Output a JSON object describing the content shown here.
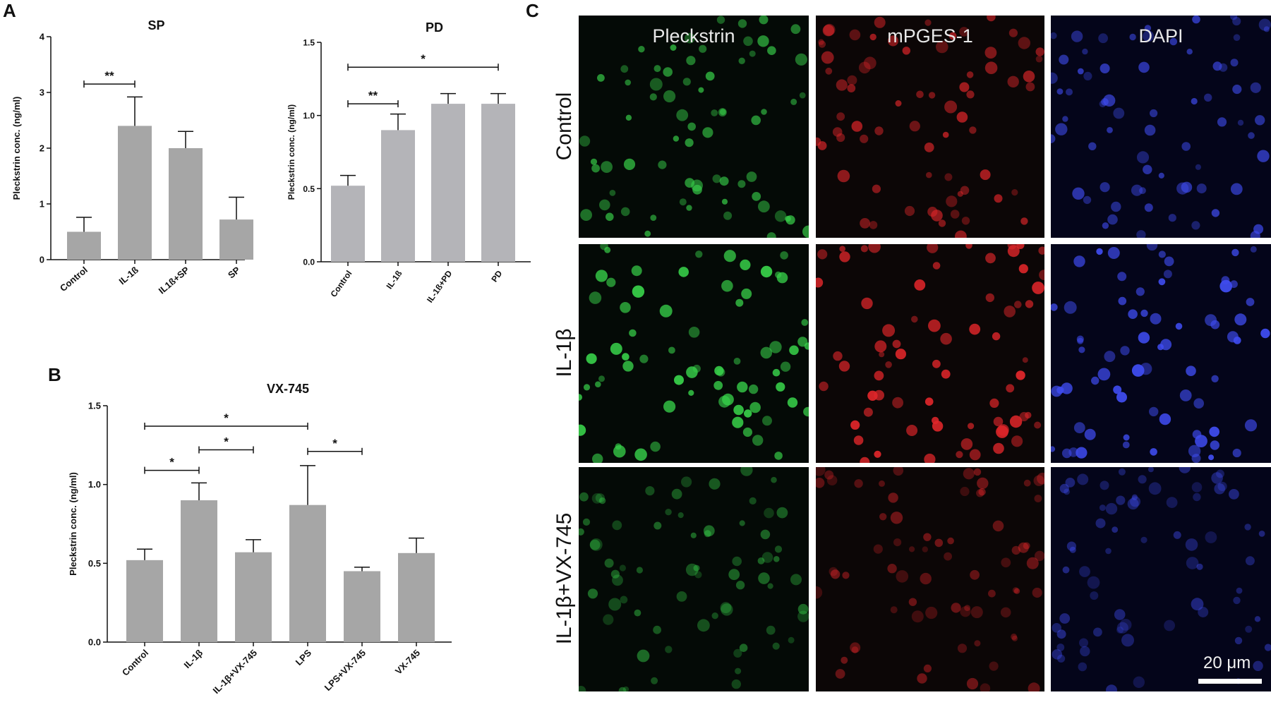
{
  "panels": {
    "a": "A",
    "b": "B",
    "c": "C"
  },
  "chart_data": [
    {
      "id": "sp",
      "type": "bar",
      "title": "SP",
      "ylabel": "Pleckstrin conc. (ng/ml)",
      "xlabel": "",
      "categories": [
        "Control",
        "IL-1ß",
        "IL1ß+SP",
        "SP"
      ],
      "values": [
        0.5,
        2.4,
        2.0,
        0.72
      ],
      "errors": [
        0.26,
        0.52,
        0.3,
        0.4
      ],
      "ylim": [
        0,
        4
      ],
      "yticks": [
        "0",
        "1",
        "2",
        "3",
        "4"
      ],
      "bar_color": "#a6a6a6",
      "significance": [
        {
          "from": 0,
          "to": 1,
          "label": "**",
          "level": 3.15
        }
      ]
    },
    {
      "id": "pd",
      "type": "bar",
      "title": "PD",
      "ylabel": "Pleckstrin conc. (ng/ml)",
      "xlabel": "",
      "categories": [
        "Control",
        "IL-1ß",
        "IL-1ß+PD",
        "PD"
      ],
      "values": [
        0.52,
        0.9,
        1.08,
        1.08
      ],
      "errors": [
        0.07,
        0.11,
        0.07,
        0.07
      ],
      "ylim": [
        0,
        1.5
      ],
      "yticks": [
        "0.0",
        "0.5",
        "1.0",
        "1.5"
      ],
      "bar_color": "#b4b4b8",
      "significance": [
        {
          "from": 0,
          "to": 1,
          "label": "**",
          "level": 1.08
        },
        {
          "from": 0,
          "to": 3,
          "label": "*",
          "level": 1.33
        }
      ]
    },
    {
      "id": "vx",
      "type": "bar",
      "title": "VX-745",
      "ylabel": "Pleckstrin conc. (ng/ml)",
      "xlabel": "",
      "categories": [
        "Control",
        "IL-1β",
        "IL-1β+VX-745",
        "LPS",
        "LPS+VX-745",
        "VX-745"
      ],
      "values": [
        0.52,
        0.9,
        0.57,
        0.87,
        0.45,
        0.565
      ],
      "errors": [
        0.07,
        0.11,
        0.08,
        0.25,
        0.025,
        0.095
      ],
      "ylim": [
        0,
        1.5
      ],
      "yticks": [
        "0.0",
        "0.5",
        "1.0",
        "1.5"
      ],
      "bar_color": "#a6a6a6",
      "significance": [
        {
          "from": 0,
          "to": 1,
          "label": "*",
          "level": 1.09
        },
        {
          "from": 1,
          "to": 2,
          "label": "*",
          "level": 1.22
        },
        {
          "from": 0,
          "to": 3,
          "label": "*",
          "level": 1.37
        },
        {
          "from": 3,
          "to": 4,
          "label": "*",
          "level": 1.21
        }
      ]
    }
  ],
  "microscopy": {
    "columns": [
      {
        "label": "Pleckstrin",
        "color": "#38d24a"
      },
      {
        "label": "mPGES-1",
        "color": "#e0262a"
      },
      {
        "label": "DAPI",
        "color": "#3f4cf0"
      }
    ],
    "rows": [
      {
        "label": "Control",
        "intensity": 0.75
      },
      {
        "label": "IL-1β",
        "intensity": 1.0
      },
      {
        "label": "IL-1β+VX-745",
        "intensity": 0.5
      }
    ],
    "scale_label": "20 μm"
  }
}
